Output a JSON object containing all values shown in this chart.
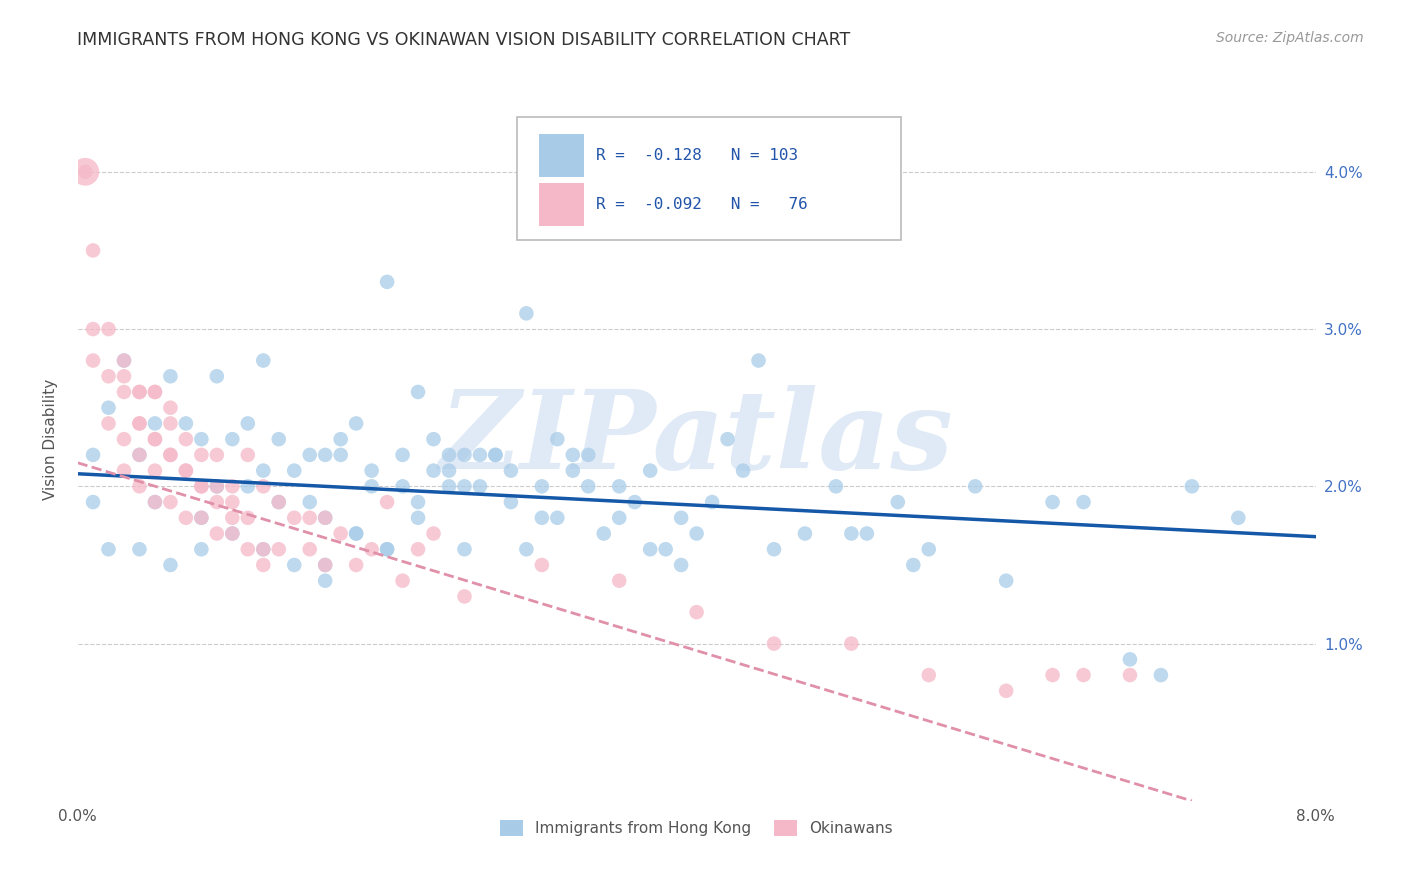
{
  "title": "IMMIGRANTS FROM HONG KONG VS OKINAWAN VISION DISABILITY CORRELATION CHART",
  "source": "Source: ZipAtlas.com",
  "ylabel": "Vision Disability",
  "xlim": [
    0.0,
    0.08
  ],
  "ylim": [
    0.0,
    0.046
  ],
  "ytick_positions": [
    0.01,
    0.02,
    0.03,
    0.04
  ],
  "ytick_labels": [
    "1.0%",
    "2.0%",
    "3.0%",
    "4.0%"
  ],
  "xtick_positions": [
    0.0,
    0.01,
    0.02,
    0.03,
    0.04,
    0.05,
    0.06,
    0.07,
    0.08
  ],
  "xtick_labels": [
    "0.0%",
    "",
    "",
    "",
    "",
    "",
    "",
    "",
    "8.0%"
  ],
  "legend_line1": "R =  -0.128   N = 103",
  "legend_line2": "R =  -0.092   N =   76",
  "blue_color": "#a8cce8",
  "pink_color": "#f5b8c8",
  "blue_line_color": "#1558a8",
  "pink_line_color": "#e090a8",
  "title_color": "#333333",
  "source_color": "#999999",
  "grid_color": "#cccccc",
  "watermark_color": "#ccddf0",
  "watermark_text": "ZIPatlas",
  "blue_trend_x": [
    0.0,
    0.08
  ],
  "blue_trend_y": [
    0.0208,
    0.0168
  ],
  "pink_trend_x": [
    0.0,
    0.072
  ],
  "pink_trend_y": [
    0.0215,
    0.0
  ],
  "blue_x": [
    0.001,
    0.001,
    0.002,
    0.003,
    0.004,
    0.005,
    0.005,
    0.006,
    0.007,
    0.008,
    0.008,
    0.009,
    0.01,
    0.011,
    0.012,
    0.012,
    0.013,
    0.014,
    0.015,
    0.016,
    0.016,
    0.017,
    0.018,
    0.019,
    0.02,
    0.021,
    0.022,
    0.023,
    0.024,
    0.025,
    0.025,
    0.026,
    0.027,
    0.028,
    0.029,
    0.03,
    0.031,
    0.032,
    0.033,
    0.034,
    0.035,
    0.036,
    0.037,
    0.038,
    0.039,
    0.04,
    0.041,
    0.042,
    0.043,
    0.044,
    0.009,
    0.011,
    0.013,
    0.015,
    0.017,
    0.019,
    0.021,
    0.023,
    0.025,
    0.027,
    0.029,
    0.031,
    0.033,
    0.016,
    0.018,
    0.02,
    0.022,
    0.024,
    0.035,
    0.037,
    0.039,
    0.05,
    0.053,
    0.055,
    0.058,
    0.06,
    0.063,
    0.065,
    0.068,
    0.07,
    0.072,
    0.075,
    0.03,
    0.032,
    0.028,
    0.026,
    0.024,
    0.022,
    0.02,
    0.018,
    0.016,
    0.014,
    0.012,
    0.01,
    0.008,
    0.006,
    0.004,
    0.002,
    0.045,
    0.047,
    0.049,
    0.051,
    0.054
  ],
  "blue_y": [
    0.022,
    0.019,
    0.025,
    0.028,
    0.022,
    0.024,
    0.019,
    0.027,
    0.024,
    0.023,
    0.018,
    0.027,
    0.023,
    0.024,
    0.028,
    0.021,
    0.023,
    0.021,
    0.022,
    0.022,
    0.018,
    0.023,
    0.024,
    0.021,
    0.033,
    0.02,
    0.026,
    0.023,
    0.022,
    0.02,
    0.016,
    0.022,
    0.022,
    0.021,
    0.031,
    0.02,
    0.023,
    0.021,
    0.022,
    0.017,
    0.02,
    0.019,
    0.021,
    0.016,
    0.018,
    0.017,
    0.019,
    0.023,
    0.021,
    0.028,
    0.02,
    0.02,
    0.019,
    0.019,
    0.022,
    0.02,
    0.022,
    0.021,
    0.022,
    0.022,
    0.016,
    0.018,
    0.02,
    0.015,
    0.017,
    0.016,
    0.019,
    0.02,
    0.018,
    0.016,
    0.015,
    0.017,
    0.019,
    0.016,
    0.02,
    0.014,
    0.019,
    0.019,
    0.009,
    0.008,
    0.02,
    0.018,
    0.018,
    0.022,
    0.019,
    0.02,
    0.021,
    0.018,
    0.016,
    0.017,
    0.014,
    0.015,
    0.016,
    0.017,
    0.016,
    0.015,
    0.016,
    0.016,
    0.016,
    0.017,
    0.02,
    0.017,
    0.015
  ],
  "pink_x": [
    0.0005,
    0.001,
    0.001,
    0.001,
    0.002,
    0.002,
    0.002,
    0.003,
    0.003,
    0.003,
    0.003,
    0.004,
    0.004,
    0.004,
    0.004,
    0.005,
    0.005,
    0.005,
    0.005,
    0.006,
    0.006,
    0.006,
    0.007,
    0.007,
    0.007,
    0.008,
    0.008,
    0.008,
    0.009,
    0.009,
    0.009,
    0.01,
    0.01,
    0.01,
    0.011,
    0.011,
    0.012,
    0.012,
    0.013,
    0.013,
    0.014,
    0.015,
    0.015,
    0.016,
    0.016,
    0.017,
    0.018,
    0.019,
    0.02,
    0.021,
    0.022,
    0.023,
    0.025,
    0.03,
    0.035,
    0.04,
    0.045,
    0.05,
    0.055,
    0.06,
    0.063,
    0.065,
    0.068,
    0.004,
    0.005,
    0.006,
    0.007,
    0.008,
    0.009,
    0.01,
    0.011,
    0.012,
    0.003,
    0.004,
    0.005,
    0.006
  ],
  "pink_y": [
    0.04,
    0.035,
    0.03,
    0.028,
    0.03,
    0.027,
    0.024,
    0.028,
    0.026,
    0.023,
    0.021,
    0.026,
    0.024,
    0.022,
    0.02,
    0.026,
    0.023,
    0.021,
    0.019,
    0.024,
    0.022,
    0.019,
    0.023,
    0.021,
    0.018,
    0.022,
    0.02,
    0.018,
    0.022,
    0.02,
    0.017,
    0.02,
    0.019,
    0.017,
    0.022,
    0.018,
    0.02,
    0.016,
    0.019,
    0.016,
    0.018,
    0.018,
    0.016,
    0.018,
    0.015,
    0.017,
    0.015,
    0.016,
    0.019,
    0.014,
    0.016,
    0.017,
    0.013,
    0.015,
    0.014,
    0.012,
    0.01,
    0.01,
    0.008,
    0.007,
    0.008,
    0.008,
    0.008,
    0.024,
    0.023,
    0.022,
    0.021,
    0.02,
    0.019,
    0.018,
    0.016,
    0.015,
    0.027,
    0.026,
    0.026,
    0.025
  ],
  "pink_large_x": [
    0.0005
  ],
  "pink_large_y": [
    0.04
  ],
  "pink_large_size": 400
}
